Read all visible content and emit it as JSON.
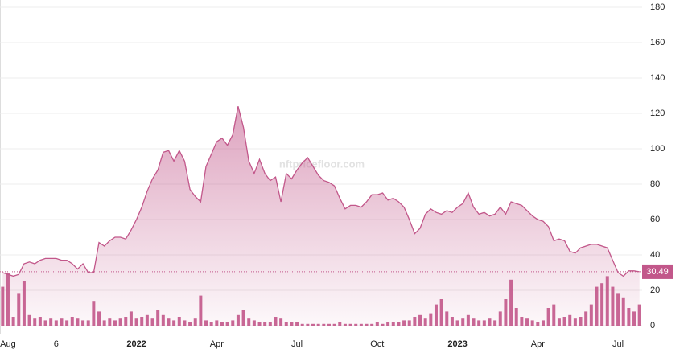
{
  "chart_data": {
    "type": "area",
    "watermark": "nftpricefloor.com",
    "categories": [
      null,
      "Aug",
      null,
      null,
      null,
      null,
      null,
      null,
      null,
      null,
      "6",
      null,
      null,
      null,
      null,
      null,
      null,
      null,
      null,
      null,
      null,
      null,
      null,
      null,
      null,
      "2022",
      null,
      null,
      null,
      null,
      null,
      null,
      null,
      null,
      null,
      null,
      null,
      null,
      null,
      null,
      "Apr",
      null,
      null,
      null,
      null,
      null,
      null,
      null,
      null,
      null,
      null,
      null,
      null,
      null,
      null,
      "Jul",
      null,
      null,
      null,
      null,
      null,
      null,
      null,
      null,
      null,
      null,
      null,
      null,
      null,
      null,
      "Oct",
      null,
      null,
      null,
      null,
      null,
      null,
      null,
      null,
      null,
      null,
      null,
      null,
      null,
      null,
      "2023",
      null,
      null,
      null,
      null,
      null,
      null,
      null,
      null,
      null,
      null,
      null,
      null,
      null,
      null,
      "Apr",
      null,
      null,
      null,
      null,
      null,
      null,
      null,
      null,
      null,
      null,
      null,
      null,
      null,
      null,
      "Jul",
      null,
      null,
      null,
      null
    ],
    "series": [
      {
        "type": "area",
        "color": "#c2578a",
        "values": [
          30,
          29,
          28,
          29,
          35,
          36,
          35,
          37,
          38,
          38,
          38,
          37,
          37,
          35,
          32,
          35,
          30,
          30,
          47,
          45,
          48,
          50,
          50,
          49,
          54,
          60,
          67,
          76,
          83,
          88,
          98,
          99,
          93,
          99,
          93,
          77,
          73,
          70,
          90,
          97,
          104,
          106,
          102,
          108,
          124,
          112,
          93,
          86,
          94,
          86,
          82,
          84,
          70,
          86,
          83,
          88,
          92,
          95,
          90,
          85,
          82,
          81,
          79,
          72,
          66,
          68,
          68,
          67,
          70,
          74,
          74,
          75,
          71,
          72,
          70,
          67,
          60,
          52,
          55,
          63,
          66,
          64,
          63,
          65,
          64,
          67,
          69,
          75,
          67,
          63,
          64,
          62,
          63,
          67,
          63,
          70,
          69,
          68,
          65,
          62,
          60,
          59,
          56,
          48,
          49,
          48,
          42,
          41,
          44,
          45,
          46,
          46,
          45,
          44,
          37,
          30,
          28,
          31,
          31,
          30.49
        ]
      },
      {
        "type": "bar",
        "color": "#c2578a",
        "values": [
          22,
          30,
          5,
          18,
          25,
          6,
          4,
          5,
          3,
          4,
          3,
          4,
          3,
          5,
          4,
          3,
          3,
          14,
          8,
          3,
          4,
          3,
          4,
          5,
          8,
          4,
          5,
          6,
          4,
          9,
          6,
          4,
          3,
          5,
          3,
          2,
          4,
          17,
          3,
          2,
          3,
          2,
          2,
          3,
          6,
          9,
          4,
          3,
          2,
          2,
          2,
          5,
          4,
          2,
          2,
          2,
          1,
          1,
          1,
          1,
          1,
          1,
          1,
          2,
          1,
          1,
          1,
          1,
          1,
          1,
          2,
          1,
          2,
          2,
          2,
          3,
          3,
          5,
          6,
          4,
          7,
          12,
          15,
          8,
          5,
          3,
          4,
          6,
          4,
          3,
          3,
          4,
          3,
          8,
          15,
          26,
          10,
          5,
          4,
          3,
          2,
          3,
          10,
          12,
          4,
          5,
          6,
          4,
          5,
          8,
          12,
          22,
          24,
          28,
          22,
          18,
          16,
          10,
          8,
          12
        ]
      }
    ],
    "ylim": [
      0,
      180
    ],
    "yticks": [
      0,
      20,
      40,
      60,
      80,
      100,
      120,
      140,
      160,
      180
    ],
    "grid": true
  }
}
